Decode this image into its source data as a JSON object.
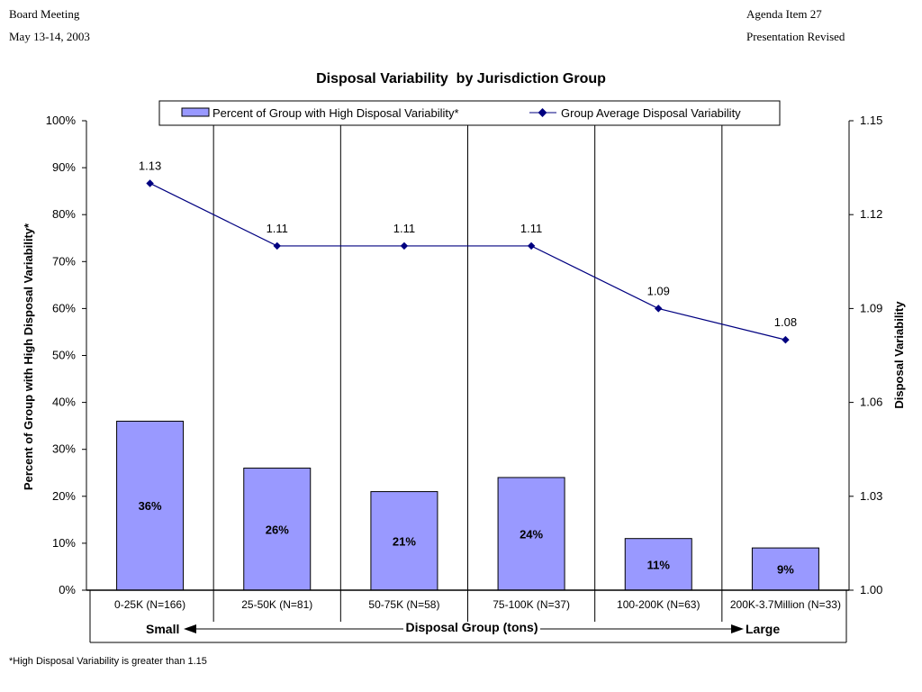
{
  "header": {
    "left_line1": "Board Meeting",
    "left_line2": "May 13-14, 2003",
    "right_line1": "Agenda Item 27",
    "right_line2": "Presentation Revised"
  },
  "footnote": "*High Disposal Variability is greater than 1.15",
  "chart_data": {
    "type": "bar",
    "title": "Disposal Variability  by Jurisdiction Group",
    "categories": [
      "0-25K (N=166)",
      "25-50K (N=81)",
      "50-75K (N=58)",
      "75-100K (N=37)",
      "100-200K (N=63)",
      "200K-3.7Million (N=33)"
    ],
    "xlabel": "Disposal Group (tons)",
    "x_arrow_left": "Small",
    "x_arrow_right": "Large",
    "ylabel": "Percent of Group with High Disposal Variability*",
    "ylabel_right": "Disposal Variability",
    "ylim": [
      0,
      100
    ],
    "ylim_right": [
      1.0,
      1.15
    ],
    "y_ticks": [
      "0%",
      "10%",
      "20%",
      "30%",
      "40%",
      "50%",
      "60%",
      "70%",
      "80%",
      "90%",
      "100%"
    ],
    "y_ticks_right": [
      "1.00",
      "1.03",
      "1.06",
      "1.09",
      "1.12",
      "1.15"
    ],
    "legend_position": "top",
    "series": [
      {
        "name": "Percent of Group with High Disposal Variability*",
        "type": "bar",
        "axis": "left",
        "color": "#9999ff",
        "values": [
          36,
          26,
          21,
          24,
          11,
          9
        ],
        "labels": [
          "36%",
          "26%",
          "21%",
          "24%",
          "11%",
          "9%"
        ]
      },
      {
        "name": "Group Average Disposal Variability",
        "type": "line",
        "axis": "right",
        "color": "#000080",
        "values": [
          1.13,
          1.11,
          1.11,
          1.11,
          1.09,
          1.08
        ],
        "labels": [
          "1.13",
          "1.11",
          "1.11",
          "1.11",
          "1.09",
          "1.08"
        ]
      }
    ]
  }
}
